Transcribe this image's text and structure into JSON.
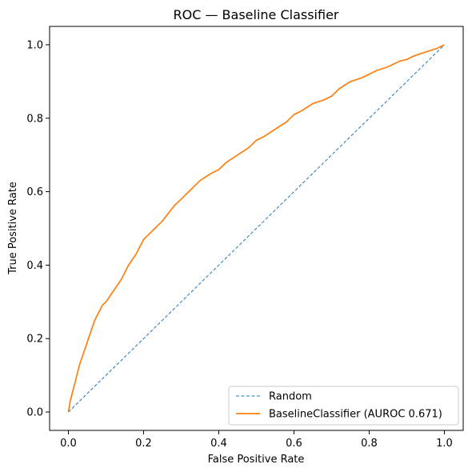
{
  "chart_data": {
    "type": "line",
    "title": "ROC — Baseline Classifier",
    "xlabel": "False Positive Rate",
    "ylabel": "True Positive Rate",
    "xlim": [
      -0.05,
      1.05
    ],
    "ylim": [
      -0.05,
      1.05
    ],
    "xticks": [
      "0.0",
      "0.2",
      "0.4",
      "0.6",
      "0.8",
      "1.0"
    ],
    "yticks": [
      "0.0",
      "0.2",
      "0.4",
      "0.6",
      "0.8",
      "1.0"
    ],
    "grid": false,
    "legend_position": "bottom-right",
    "series": [
      {
        "name": "Random",
        "color": "#1f77b4",
        "style": "dashed",
        "x": [
          0,
          1
        ],
        "y": [
          0,
          1
        ]
      },
      {
        "name": "BaselineClassifier (AUROC 0.671)",
        "color": "#ff7f0e",
        "style": "solid",
        "x": [
          0.0,
          0.005,
          0.01,
          0.02,
          0.03,
          0.04,
          0.05,
          0.06,
          0.07,
          0.08,
          0.09,
          0.1,
          0.12,
          0.14,
          0.15,
          0.16,
          0.18,
          0.2,
          0.22,
          0.23,
          0.25,
          0.28,
          0.3,
          0.32,
          0.35,
          0.38,
          0.4,
          0.42,
          0.45,
          0.48,
          0.5,
          0.52,
          0.55,
          0.58,
          0.6,
          0.62,
          0.65,
          0.68,
          0.7,
          0.72,
          0.75,
          0.78,
          0.8,
          0.82,
          0.85,
          0.88,
          0.9,
          0.92,
          0.95,
          0.98,
          1.0
        ],
        "y": [
          0.0,
          0.03,
          0.05,
          0.09,
          0.13,
          0.16,
          0.19,
          0.22,
          0.25,
          0.27,
          0.29,
          0.3,
          0.33,
          0.36,
          0.38,
          0.4,
          0.43,
          0.47,
          0.49,
          0.5,
          0.52,
          0.56,
          0.58,
          0.6,
          0.63,
          0.65,
          0.66,
          0.68,
          0.7,
          0.72,
          0.74,
          0.75,
          0.77,
          0.79,
          0.81,
          0.82,
          0.84,
          0.85,
          0.86,
          0.88,
          0.9,
          0.91,
          0.92,
          0.93,
          0.94,
          0.955,
          0.96,
          0.97,
          0.98,
          0.99,
          1.0
        ]
      }
    ]
  }
}
